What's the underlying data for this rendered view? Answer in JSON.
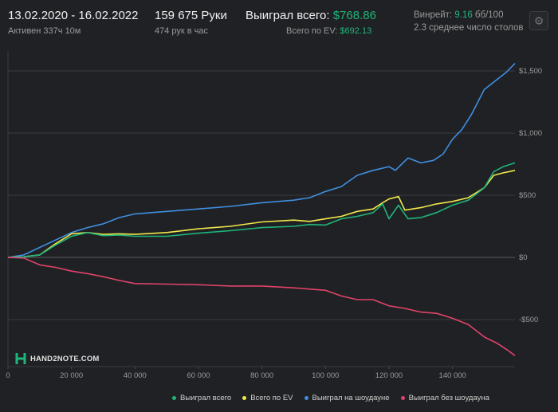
{
  "header": {
    "date_range": "13.02.2020 - 16.02.2022",
    "active_time": "Активен 337ч 10м",
    "hands": "159 675 Руки",
    "hands_per_hour": "474 рук в час",
    "won_total_label": "Выиграл всего:",
    "won_total_value": "$768.86",
    "ev_total_label": "Всего по EV:",
    "ev_total_value": "$692.13",
    "winrate_label": "Винрейт:",
    "winrate_value": "9.16",
    "winrate_unit": "бб/100",
    "avg_tables": "2.3 среднее число столов",
    "settings_icon": "gear-icon"
  },
  "logo": {
    "text": "HAND2NOTE.COM",
    "icon": "hand2note-logo-icon"
  },
  "legend": [
    {
      "label": "Выиграл всего",
      "color": "#1fb57a"
    },
    {
      "label": "Всего по EV",
      "color": "#f2e84b"
    },
    {
      "label": "Выиграл на шоудауне",
      "color": "#3f8fe0"
    },
    {
      "label": "Выиграл без шоудауна",
      "color": "#e0436a"
    }
  ],
  "chart_data": {
    "type": "line",
    "xlim": [
      0,
      159675
    ],
    "ylim": [
      -800,
      1600
    ],
    "x_ticks": [
      0,
      20000,
      40000,
      60000,
      80000,
      100000,
      120000,
      140000
    ],
    "x_tick_labels": [
      "0",
      "20 000",
      "40 000",
      "60 000",
      "80 000",
      "100 000",
      "120 000",
      "140 000"
    ],
    "y_ticks": [
      1500,
      1000,
      500,
      0,
      -500
    ],
    "y_tick_labels": [
      "$1,500",
      "$1,000",
      "$500",
      "$0",
      "-$500"
    ],
    "grid": "horizontal",
    "legend_position": "bottom",
    "series": [
      {
        "name": "Выиграл на шоудауне",
        "color": "#3f8fe0",
        "points": [
          [
            0,
            0
          ],
          [
            5000,
            20
          ],
          [
            10000,
            80
          ],
          [
            15000,
            140
          ],
          [
            20000,
            200
          ],
          [
            25000,
            240
          ],
          [
            30000,
            270
          ],
          [
            35000,
            320
          ],
          [
            40000,
            350
          ],
          [
            50000,
            370
          ],
          [
            60000,
            390
          ],
          [
            70000,
            410
          ],
          [
            80000,
            440
          ],
          [
            90000,
            460
          ],
          [
            95000,
            480
          ],
          [
            100000,
            530
          ],
          [
            105000,
            570
          ],
          [
            110000,
            660
          ],
          [
            115000,
            700
          ],
          [
            120000,
            730
          ],
          [
            122000,
            700
          ],
          [
            126000,
            800
          ],
          [
            130000,
            760
          ],
          [
            134000,
            780
          ],
          [
            137000,
            830
          ],
          [
            140000,
            950
          ],
          [
            143000,
            1030
          ],
          [
            146000,
            1150
          ],
          [
            150000,
            1350
          ],
          [
            154000,
            1430
          ],
          [
            157000,
            1490
          ],
          [
            159675,
            1560
          ]
        ]
      },
      {
        "name": "Всего по EV",
        "color": "#f2e84b",
        "points": [
          [
            0,
            0
          ],
          [
            5000,
            5
          ],
          [
            10000,
            20
          ],
          [
            15000,
            110
          ],
          [
            20000,
            190
          ],
          [
            25000,
            200
          ],
          [
            30000,
            185
          ],
          [
            35000,
            190
          ],
          [
            40000,
            185
          ],
          [
            50000,
            200
          ],
          [
            60000,
            230
          ],
          [
            70000,
            250
          ],
          [
            80000,
            285
          ],
          [
            90000,
            300
          ],
          [
            95000,
            290
          ],
          [
            100000,
            310
          ],
          [
            105000,
            330
          ],
          [
            110000,
            370
          ],
          [
            115000,
            390
          ],
          [
            118000,
            440
          ],
          [
            120000,
            470
          ],
          [
            123000,
            490
          ],
          [
            125000,
            380
          ],
          [
            130000,
            400
          ],
          [
            135000,
            430
          ],
          [
            140000,
            450
          ],
          [
            145000,
            480
          ],
          [
            150000,
            560
          ],
          [
            153000,
            660
          ],
          [
            156000,
            680
          ],
          [
            159675,
            700
          ]
        ]
      },
      {
        "name": "Выиграл всего",
        "color": "#1fb57a",
        "points": [
          [
            0,
            0
          ],
          [
            5000,
            5
          ],
          [
            10000,
            20
          ],
          [
            15000,
            100
          ],
          [
            20000,
            170
          ],
          [
            25000,
            200
          ],
          [
            30000,
            175
          ],
          [
            35000,
            180
          ],
          [
            40000,
            170
          ],
          [
            50000,
            170
          ],
          [
            60000,
            195
          ],
          [
            70000,
            215
          ],
          [
            80000,
            240
          ],
          [
            90000,
            250
          ],
          [
            95000,
            265
          ],
          [
            100000,
            260
          ],
          [
            105000,
            310
          ],
          [
            110000,
            330
          ],
          [
            115000,
            360
          ],
          [
            118000,
            430
          ],
          [
            120000,
            310
          ],
          [
            123000,
            420
          ],
          [
            126000,
            310
          ],
          [
            130000,
            320
          ],
          [
            135000,
            360
          ],
          [
            140000,
            420
          ],
          [
            145000,
            460
          ],
          [
            150000,
            560
          ],
          [
            153000,
            690
          ],
          [
            156000,
            730
          ],
          [
            159675,
            760
          ]
        ]
      },
      {
        "name": "Выиграл без шоудауна",
        "color": "#e0436a",
        "points": [
          [
            0,
            0
          ],
          [
            5000,
            -5
          ],
          [
            10000,
            -60
          ],
          [
            15000,
            -80
          ],
          [
            20000,
            -110
          ],
          [
            25000,
            -130
          ],
          [
            30000,
            -155
          ],
          [
            35000,
            -185
          ],
          [
            40000,
            -210
          ],
          [
            50000,
            -215
          ],
          [
            60000,
            -220
          ],
          [
            70000,
            -230
          ],
          [
            80000,
            -230
          ],
          [
            90000,
            -245
          ],
          [
            100000,
            -265
          ],
          [
            105000,
            -310
          ],
          [
            110000,
            -340
          ],
          [
            115000,
            -340
          ],
          [
            120000,
            -390
          ],
          [
            125000,
            -410
          ],
          [
            130000,
            -440
          ],
          [
            135000,
            -450
          ],
          [
            140000,
            -490
          ],
          [
            145000,
            -540
          ],
          [
            150000,
            -640
          ],
          [
            154000,
            -690
          ],
          [
            157000,
            -740
          ],
          [
            159675,
            -790
          ]
        ]
      }
    ]
  }
}
